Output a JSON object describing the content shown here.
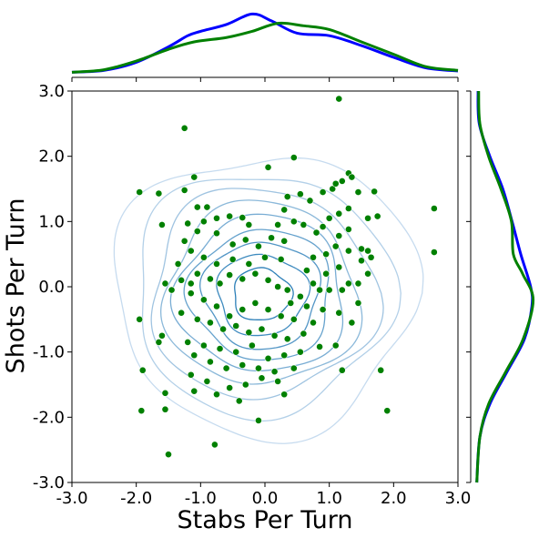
{
  "chart_data": {
    "type": "scatter",
    "xlabel": "Stabs Per Turn",
    "ylabel": "Shots Per Turn",
    "xlim": [
      -3.0,
      3.0
    ],
    "ylim": [
      -3.0,
      3.0
    ],
    "x_ticks": [
      "-3.0",
      "-2.0",
      "-1.0",
      "0.0",
      "1.0",
      "2.0",
      "3.0"
    ],
    "y_ticks": [
      "-3.0",
      "-2.0",
      "-1.0",
      "0.0",
      "1.0",
      "2.0",
      "3.0"
    ],
    "grid": false,
    "colors": {
      "points": "#008000",
      "marginal_blue": "#0000ff",
      "marginal_green": "#008000",
      "contour_light": "#c6dbef",
      "contour_dark": "#2c7fb8"
    },
    "contour_levels": [
      {
        "cx": 0.0,
        "cy": -0.1,
        "rx": 2.35,
        "ry": 2.15
      },
      {
        "cx": -0.05,
        "cy": -0.1,
        "rx": 2.0,
        "ry": 1.85
      },
      {
        "cx": -0.05,
        "cy": -0.1,
        "rx": 1.75,
        "ry": 1.6
      },
      {
        "cx": -0.05,
        "cy": -0.12,
        "rx": 1.5,
        "ry": 1.4
      },
      {
        "cx": -0.05,
        "cy": -0.12,
        "rx": 1.3,
        "ry": 1.2
      },
      {
        "cx": -0.05,
        "cy": -0.12,
        "rx": 1.1,
        "ry": 1.0
      },
      {
        "cx": -0.05,
        "cy": -0.12,
        "rx": 0.9,
        "ry": 0.82
      },
      {
        "cx": -0.05,
        "cy": -0.12,
        "rx": 0.7,
        "ry": 0.62
      },
      {
        "cx": -0.05,
        "cy": -0.12,
        "rx": 0.45,
        "ry": 0.4
      }
    ],
    "points": [
      [
        1.15,
        2.88
      ],
      [
        -1.25,
        2.43
      ],
      [
        0.05,
        1.83
      ],
      [
        0.45,
        1.98
      ],
      [
        -1.95,
        1.45
      ],
      [
        -1.65,
        1.43
      ],
      [
        -1.25,
        1.48
      ],
      [
        -1.1,
        1.68
      ],
      [
        -1.05,
        1.22
      ],
      [
        -0.9,
        1.22
      ],
      [
        -1.2,
        0.97
      ],
      [
        -1.6,
        0.95
      ],
      [
        -0.95,
        1.0
      ],
      [
        -0.75,
        1.05
      ],
      [
        -0.55,
        1.08
      ],
      [
        -0.35,
        1.06
      ],
      [
        -0.25,
        0.95
      ],
      [
        0.35,
        1.38
      ],
      [
        0.55,
        1.42
      ],
      [
        0.7,
        1.32
      ],
      [
        0.9,
        1.45
      ],
      [
        1.05,
        1.5
      ],
      [
        1.1,
        1.58
      ],
      [
        1.2,
        1.62
      ],
      [
        1.3,
        1.74
      ],
      [
        1.35,
        1.68
      ],
      [
        1.45,
        1.45
      ],
      [
        1.7,
        1.46
      ],
      [
        1.6,
        1.05
      ],
      [
        1.75,
        1.08
      ],
      [
        1.3,
        1.2
      ],
      [
        1.15,
        1.12
      ],
      [
        1.0,
        1.05
      ],
      [
        0.9,
        0.92
      ],
      [
        0.8,
        0.83
      ],
      [
        0.6,
        0.95
      ],
      [
        0.45,
        1.0
      ],
      [
        0.3,
        1.18
      ],
      [
        0.2,
        0.95
      ],
      [
        1.15,
        0.78
      ],
      [
        1.3,
        0.88
      ],
      [
        1.5,
        0.58
      ],
      [
        1.6,
        0.55
      ],
      [
        1.65,
        0.45
      ],
      [
        1.5,
        0.4
      ],
      [
        1.3,
        0.55
      ],
      [
        1.1,
        0.62
      ],
      [
        0.95,
        0.5
      ],
      [
        0.75,
        0.45
      ],
      [
        2.63,
        1.2
      ],
      [
        2.63,
        0.53
      ],
      [
        1.6,
        0.2
      ],
      [
        1.45,
        0.05
      ],
      [
        1.3,
        0.05
      ],
      [
        1.15,
        0.3
      ],
      [
        0.95,
        0.2
      ],
      [
        0.75,
        0.05
      ],
      [
        1.0,
        -0.05
      ],
      [
        1.2,
        -0.05
      ],
      [
        1.45,
        -0.25
      ],
      [
        1.15,
        -0.4
      ],
      [
        0.9,
        -0.35
      ],
      [
        0.65,
        -0.3
      ],
      [
        0.55,
        -0.15
      ],
      [
        0.4,
        -0.25
      ],
      [
        -1.25,
        0.7
      ],
      [
        -1.05,
        0.85
      ],
      [
        -0.75,
        0.82
      ],
      [
        -0.5,
        0.65
      ],
      [
        -0.3,
        0.72
      ],
      [
        -0.1,
        0.62
      ],
      [
        0.1,
        0.75
      ],
      [
        0.3,
        0.7
      ],
      [
        -1.35,
        0.35
      ],
      [
        -1.15,
        0.55
      ],
      [
        -0.95,
        0.45
      ],
      [
        -0.75,
        0.35
      ],
      [
        -0.5,
        0.42
      ],
      [
        -0.25,
        0.35
      ],
      [
        0.0,
        0.45
      ],
      [
        0.25,
        0.42
      ],
      [
        -1.55,
        0.05
      ],
      [
        -1.45,
        -0.05
      ],
      [
        -1.3,
        0.1
      ],
      [
        -1.15,
        0.05
      ],
      [
        -1.05,
        0.2
      ],
      [
        -0.85,
        0.12
      ],
      [
        -0.7,
        0.05
      ],
      [
        -0.55,
        0.18
      ],
      [
        -0.35,
        0.12
      ],
      [
        -0.15,
        0.2
      ],
      [
        0.05,
        0.1
      ],
      [
        0.2,
        0.0
      ],
      [
        0.35,
        -0.05
      ],
      [
        -1.15,
        -0.1
      ],
      [
        -0.95,
        -0.2
      ],
      [
        -0.75,
        -0.3
      ],
      [
        -0.55,
        -0.45
      ],
      [
        -0.35,
        -0.35
      ],
      [
        -0.15,
        -0.25
      ],
      [
        0.05,
        -0.35
      ],
      [
        0.25,
        -0.45
      ],
      [
        0.45,
        -0.5
      ],
      [
        -1.3,
        -0.4
      ],
      [
        -1.05,
        -0.5
      ],
      [
        -0.85,
        -0.55
      ],
      [
        -0.65,
        -0.65
      ],
      [
        -0.45,
        -0.6
      ],
      [
        -0.25,
        -0.7
      ],
      [
        -0.05,
        -0.65
      ],
      [
        0.15,
        -0.75
      ],
      [
        0.35,
        -0.8
      ],
      [
        0.6,
        -0.72
      ],
      [
        -1.95,
        -0.5
      ],
      [
        -1.6,
        -0.75
      ],
      [
        -1.2,
        -0.85
      ],
      [
        -0.95,
        -0.9
      ],
      [
        -0.7,
        -0.95
      ],
      [
        -0.45,
        -1.0
      ],
      [
        -0.2,
        -0.9
      ],
      [
        0.05,
        -1.1
      ],
      [
        0.3,
        -1.05
      ],
      [
        0.55,
        -1.0
      ],
      [
        0.85,
        -0.92
      ],
      [
        1.1,
        -0.9
      ],
      [
        -1.65,
        -0.85
      ],
      [
        -1.1,
        -1.05
      ],
      [
        -0.85,
        -1.15
      ],
      [
        -0.6,
        -1.25
      ],
      [
        -0.35,
        -1.2
      ],
      [
        -0.1,
        -1.25
      ],
      [
        0.15,
        -1.3
      ],
      [
        0.45,
        -1.25
      ],
      [
        -1.9,
        -1.28
      ],
      [
        -1.15,
        -1.35
      ],
      [
        -0.9,
        -1.45
      ],
      [
        -0.55,
        -1.55
      ],
      [
        -0.3,
        -1.5
      ],
      [
        -0.05,
        -1.4
      ],
      [
        0.2,
        -1.45
      ],
      [
        1.2,
        -1.28
      ],
      [
        1.8,
        -1.28
      ],
      [
        -1.55,
        -1.63
      ],
      [
        -1.1,
        -1.6
      ],
      [
        -0.75,
        -1.65
      ],
      [
        -0.4,
        -1.75
      ],
      [
        0.3,
        -1.65
      ],
      [
        -1.55,
        -1.88
      ],
      [
        -1.92,
        -1.9
      ],
      [
        -0.1,
        -2.05
      ],
      [
        1.9,
        -1.9
      ],
      [
        -0.78,
        -2.42
      ],
      [
        -1.5,
        -2.57
      ],
      [
        0.65,
        0.25
      ],
      [
        0.85,
        -0.05
      ],
      [
        1.35,
        -0.55
      ],
      [
        0.75,
        -0.55
      ]
    ],
    "marginal_x": {
      "blue": [
        [
          -3.0,
          0.01
        ],
        [
          -2.5,
          0.04
        ],
        [
          -2.0,
          0.17
        ],
        [
          -1.5,
          0.42
        ],
        [
          -1.2,
          0.6
        ],
        [
          -1.0,
          0.67
        ],
        [
          -0.6,
          0.78
        ],
        [
          -0.2,
          0.95
        ],
        [
          0.1,
          0.84
        ],
        [
          0.5,
          0.64
        ],
        [
          1.0,
          0.6
        ],
        [
          1.5,
          0.44
        ],
        [
          2.0,
          0.25
        ],
        [
          2.5,
          0.08
        ],
        [
          3.0,
          0.03
        ]
      ],
      "green": [
        [
          -3.0,
          0.01
        ],
        [
          -2.5,
          0.05
        ],
        [
          -2.0,
          0.19
        ],
        [
          -1.5,
          0.38
        ],
        [
          -1.1,
          0.5
        ],
        [
          -0.6,
          0.57
        ],
        [
          -0.2,
          0.67
        ],
        [
          0.2,
          0.8
        ],
        [
          0.6,
          0.76
        ],
        [
          1.0,
          0.7
        ],
        [
          1.5,
          0.5
        ],
        [
          2.0,
          0.3
        ],
        [
          2.5,
          0.1
        ],
        [
          3.0,
          0.04
        ]
      ]
    },
    "marginal_y": {
      "blue": [
        [
          3.0,
          0.03
        ],
        [
          2.5,
          0.05
        ],
        [
          2.0,
          0.22
        ],
        [
          1.5,
          0.43
        ],
        [
          1.0,
          0.58
        ],
        [
          0.5,
          0.72
        ],
        [
          0.0,
          0.88
        ],
        [
          -0.3,
          0.9
        ],
        [
          -0.8,
          0.78
        ],
        [
          -1.3,
          0.5
        ],
        [
          -1.8,
          0.22
        ],
        [
          -2.3,
          0.06
        ],
        [
          -3.0,
          0.01
        ]
      ],
      "green": [
        [
          3.0,
          0.04
        ],
        [
          2.5,
          0.06
        ],
        [
          2.0,
          0.2
        ],
        [
          1.5,
          0.4
        ],
        [
          1.0,
          0.57
        ],
        [
          0.5,
          0.6
        ],
        [
          0.2,
          0.75
        ],
        [
          -0.2,
          0.92
        ],
        [
          -0.8,
          0.76
        ],
        [
          -1.3,
          0.48
        ],
        [
          -1.8,
          0.2
        ],
        [
          -2.3,
          0.06
        ],
        [
          -3.0,
          0.01
        ]
      ]
    }
  }
}
